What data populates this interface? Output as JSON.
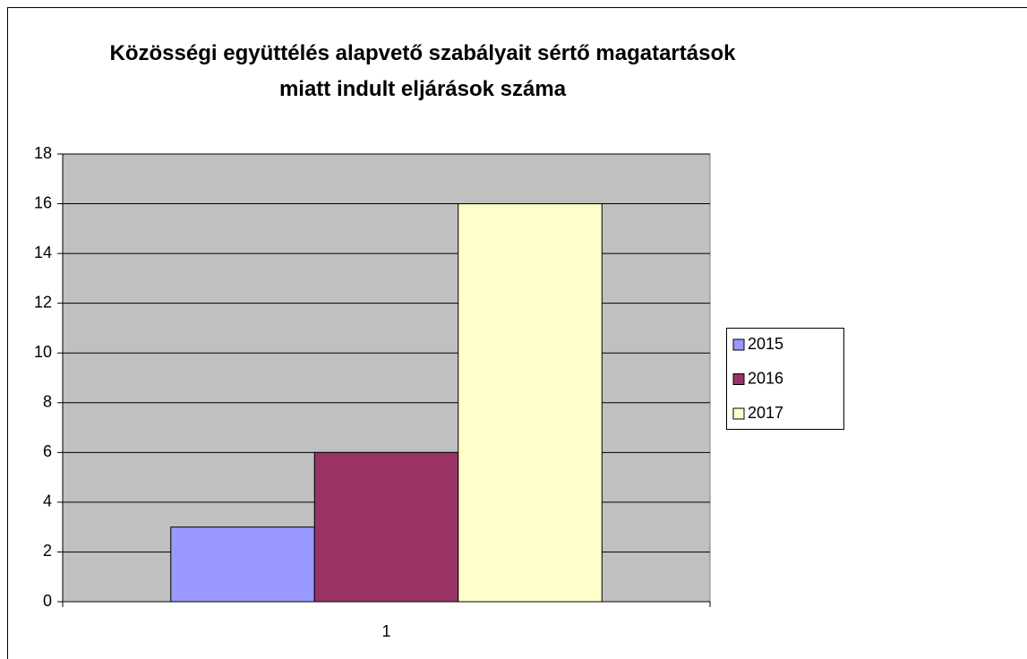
{
  "chart_data": {
    "type": "bar",
    "title": "Közösségi együttélés alapvető szabályait sértő magatartások miatt indult eljárások száma",
    "categories": [
      "1"
    ],
    "series": [
      {
        "name": "2015",
        "color": "#9999ff",
        "values": [
          3
        ]
      },
      {
        "name": "2016",
        "color": "#993366",
        "values": [
          6
        ]
      },
      {
        "name": "2017",
        "color": "#ffffcc",
        "values": [
          16
        ]
      }
    ],
    "ylim": [
      0,
      18
    ],
    "yticks": [
      0,
      2,
      4,
      6,
      8,
      10,
      12,
      14,
      16,
      18
    ],
    "grid": true,
    "legend": "right",
    "plot_background": "#c0c0c0"
  }
}
